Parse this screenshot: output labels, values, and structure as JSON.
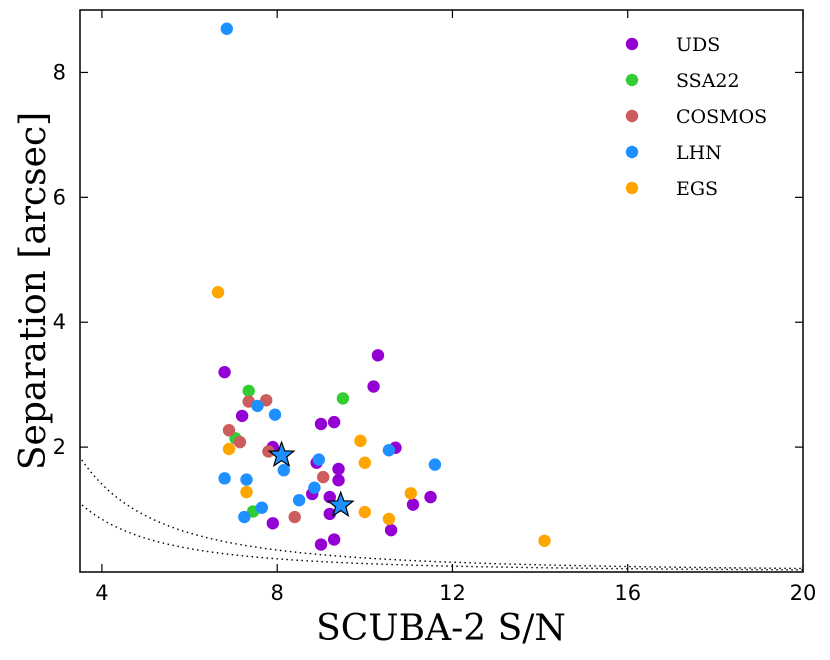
{
  "chart_data": {
    "type": "scatter",
    "title": "",
    "xlabel": "SCUBA-2 S/N",
    "ylabel": "Separation [arcsec]",
    "xlim": [
      3.5,
      20
    ],
    "ylim": [
      0,
      9
    ],
    "xticks": [
      4,
      8,
      12,
      16,
      20
    ],
    "yticks": [
      2,
      4,
      6,
      8
    ],
    "legend_position": "top-right",
    "series": [
      {
        "name": "UDS",
        "color": "#9400D3",
        "points": [
          [
            6.8,
            3.2
          ],
          [
            7.2,
            2.5
          ],
          [
            7.9,
            2.0
          ],
          [
            8.9,
            1.75
          ],
          [
            9.0,
            2.37
          ],
          [
            9.3,
            2.4
          ],
          [
            10.2,
            2.97
          ],
          [
            10.3,
            3.47
          ],
          [
            10.7,
            1.99
          ],
          [
            9.4,
            1.65
          ],
          [
            9.4,
            1.47
          ],
          [
            9.2,
            1.2
          ],
          [
            8.8,
            1.25
          ],
          [
            9.2,
            0.93
          ],
          [
            7.9,
            0.78
          ],
          [
            9.0,
            0.44
          ],
          [
            9.3,
            0.52
          ],
          [
            10.6,
            0.67
          ],
          [
            11.1,
            1.08
          ],
          [
            11.5,
            1.2
          ]
        ]
      },
      {
        "name": "SSA22",
        "color": "#32CD32",
        "points": [
          [
            7.35,
            2.9
          ],
          [
            9.5,
            2.78
          ],
          [
            7.05,
            2.14
          ],
          [
            7.45,
            0.97
          ]
        ]
      },
      {
        "name": "COSMOS",
        "color": "#CD5C5C",
        "points": [
          [
            7.35,
            2.73
          ],
          [
            7.75,
            2.75
          ],
          [
            6.9,
            2.27
          ],
          [
            7.15,
            2.08
          ],
          [
            7.8,
            1.93
          ],
          [
            9.05,
            1.52
          ],
          [
            8.4,
            0.88
          ]
        ]
      },
      {
        "name": "LHN",
        "color": "#1E90FF",
        "points": [
          [
            6.85,
            8.7
          ],
          [
            7.55,
            2.66
          ],
          [
            7.95,
            2.52
          ],
          [
            8.15,
            1.63
          ],
          [
            7.3,
            1.48
          ],
          [
            6.8,
            1.5
          ],
          [
            7.25,
            0.88
          ],
          [
            7.65,
            1.03
          ],
          [
            8.5,
            1.15
          ],
          [
            8.85,
            1.35
          ],
          [
            8.95,
            1.8
          ],
          [
            10.55,
            1.95
          ],
          [
            11.6,
            1.72
          ]
        ]
      },
      {
        "name": "EGS",
        "color": "#FFA500",
        "points": [
          [
            6.65,
            4.48
          ],
          [
            6.9,
            1.97
          ],
          [
            7.3,
            1.28
          ],
          [
            9.9,
            2.1
          ],
          [
            10.0,
            1.75
          ],
          [
            11.05,
            1.26
          ],
          [
            10.0,
            0.96
          ],
          [
            10.55,
            0.85
          ],
          [
            14.1,
            0.5
          ]
        ]
      }
    ],
    "highlighted_stars": {
      "color": "#1E90FF",
      "points": [
        [
          8.1,
          1.87
        ],
        [
          9.45,
          1.07
        ]
      ]
    },
    "curves": [
      {
        "style": "dotted",
        "k": 22.5
      },
      {
        "style": "dotted",
        "k": 13.5
      }
    ]
  }
}
